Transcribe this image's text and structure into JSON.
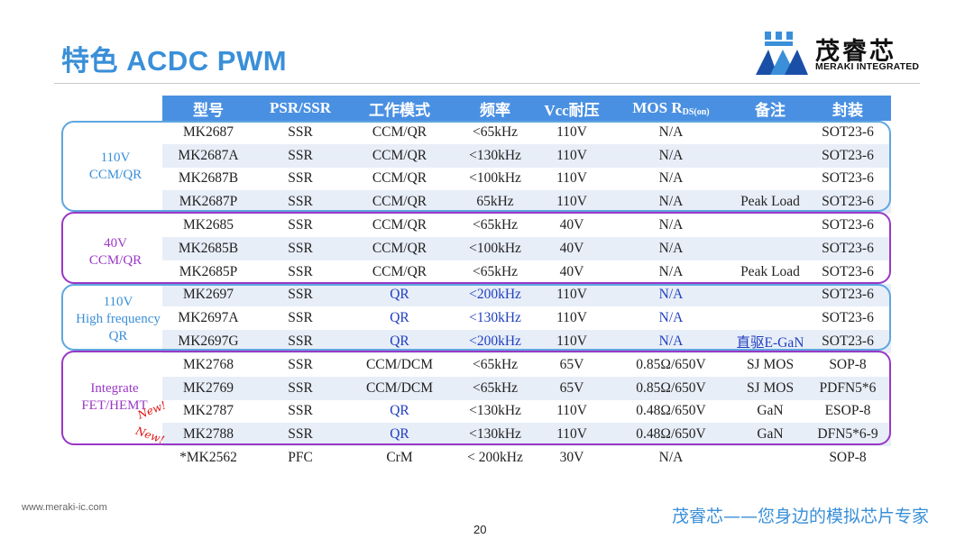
{
  "title": "特色 ACDC PWM",
  "logo": {
    "text": "茂睿芯",
    "sub": "MERAKI INTEGRATED"
  },
  "headers": [
    "型号",
    "PSR/SSR",
    "工作模式",
    "频率",
    "Vcc耐压",
    "MOS R",
    "备注",
    "封装"
  ],
  "mos_sub": "DS(on)",
  "rows": [
    [
      "MK2687",
      "SSR",
      "CCM/QR",
      "<65kHz",
      "110V",
      "N/A",
      "",
      "SOT23-6"
    ],
    [
      "MK2687A",
      "SSR",
      "CCM/QR",
      "<130kHz",
      "110V",
      "N/A",
      "",
      "SOT23-6"
    ],
    [
      "MK2687B",
      "SSR",
      "CCM/QR",
      "<100kHz",
      "110V",
      "N/A",
      "",
      "SOT23-6"
    ],
    [
      "MK2687P",
      "SSR",
      "CCM/QR",
      "65kHz",
      "110V",
      "N/A",
      "Peak Load",
      "SOT23-6"
    ],
    [
      "MK2685",
      "SSR",
      "CCM/QR",
      "<65kHz",
      "40V",
      "N/A",
      "",
      "SOT23-6"
    ],
    [
      "MK2685B",
      "SSR",
      "CCM/QR",
      "<100kHz",
      "40V",
      "N/A",
      "",
      "SOT23-6"
    ],
    [
      "MK2685P",
      "SSR",
      "CCM/QR",
      "<65kHz",
      "40V",
      "N/A",
      "Peak Load",
      "SOT23-6"
    ],
    [
      "MK2697",
      "SSR",
      "QR",
      "<200kHz",
      "110V",
      "N/A",
      "",
      "SOT23-6"
    ],
    [
      "MK2697A",
      "SSR",
      "QR",
      "<130kHz",
      "110V",
      "N/A",
      "",
      "SOT23-6"
    ],
    [
      "MK2697G",
      "SSR",
      "QR",
      "<200kHz",
      "110V",
      "N/A",
      "直驱E-GaN",
      "SOT23-6"
    ],
    [
      "MK2768",
      "SSR",
      "CCM/DCM",
      "<65kHz",
      "65V",
      "0.85Ω/650V",
      "SJ MOS",
      "SOP-8"
    ],
    [
      "MK2769",
      "SSR",
      "CCM/DCM",
      "<65kHz",
      "65V",
      "0.85Ω/650V",
      "SJ MOS",
      "PDFN5*6"
    ],
    [
      "MK2787",
      "SSR",
      "QR",
      "<130kHz",
      "110V",
      "0.48Ω/650V",
      "GaN",
      "ESOP-8"
    ],
    [
      "MK2788",
      "SSR",
      "QR",
      "<130kHz",
      "110V",
      "0.48Ω/650V",
      "GaN",
      "DFN5*6-9"
    ],
    [
      "*MK2562",
      "PFC",
      "CrM",
      "< 200kHz",
      "30V",
      "N/A",
      "",
      "SOP-8"
    ]
  ],
  "groups": [
    {
      "label": [
        "110V",
        "CCM/QR"
      ]
    },
    {
      "label": [
        "40V",
        "CCM/QR"
      ]
    },
    {
      "label": [
        "110V",
        "High frequency",
        "QR"
      ]
    },
    {
      "label": [
        "Integrate",
        "FET/HEMT"
      ]
    }
  ],
  "new_badge": "New!",
  "footer": {
    "url": "www.meraki-ic.com",
    "page": "20",
    "slogan": "茂睿芯——您身边的模拟芯片专家"
  },
  "colors": {
    "title": "#3a8fd8",
    "header_bg": "#4a90e2",
    "highlight": "#1f3fbf",
    "blue_group": "#5fa6e0",
    "purple_group": "#9a38c6",
    "new": "#dd1111"
  }
}
